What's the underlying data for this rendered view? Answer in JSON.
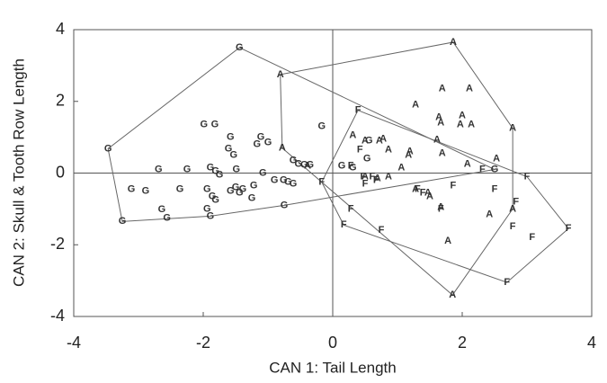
{
  "chart_data": {
    "type": "scatter",
    "x_label": "CAN 1:  Tail Length",
    "y_label": "CAN 2:  Skull & Tooth Row Length",
    "xlim": [
      -4,
      4
    ],
    "ylim": [
      -4,
      4
    ],
    "xticks": [
      -4,
      -2,
      0,
      2,
      4
    ],
    "yticks": [
      -4,
      -2,
      0,
      2,
      4
    ],
    "zero_lines": true,
    "hulls": true,
    "series": [
      {
        "name": "G",
        "color": "#333333",
        "x": [
          -1.44,
          -3.47,
          -1.99,
          -1.82,
          -1.11,
          -1.0,
          -1.17,
          -1.58,
          -1.61,
          -1.53,
          -0.17,
          -0.61,
          -0.53,
          -0.44,
          -0.35,
          -2.69,
          -2.25,
          -1.89,
          -1.81,
          -1.49,
          -1.08,
          -3.11,
          -2.89,
          -2.36,
          -1.94,
          -1.86,
          -1.81,
          -1.94,
          -1.89,
          -2.64,
          -2.56,
          -3.25,
          -1.58,
          -1.5,
          -1.44,
          -1.39,
          -1.25,
          -1.22,
          -0.9,
          -0.76,
          -0.69,
          -0.61,
          -0.75,
          -1.75,
          0.14,
          0.31,
          0.53,
          0.56,
          2.5
        ],
        "y": [
          3.5,
          0.68,
          1.35,
          1.35,
          1.0,
          0.85,
          0.8,
          1.0,
          0.68,
          0.5,
          1.3,
          0.35,
          0.25,
          0.22,
          0.22,
          0.1,
          0.1,
          0.15,
          0.05,
          0.1,
          0.0,
          -0.45,
          -0.5,
          -0.45,
          -0.45,
          -0.65,
          -0.75,
          -1.0,
          -1.2,
          -1.02,
          -1.25,
          -1.35,
          -0.5,
          -0.4,
          -0.55,
          -0.45,
          -0.7,
          -0.35,
          -0.2,
          -0.2,
          -0.25,
          -0.3,
          -0.9,
          -0.05,
          0.2,
          0.15,
          0.4,
          0.9,
          0.1
        ]
      },
      {
        "name": "A",
        "color": "#333333",
        "x": [
          1.86,
          -0.81,
          1.69,
          2.11,
          1.28,
          1.64,
          1.67,
          2.0,
          1.97,
          2.14,
          2.78,
          0.31,
          0.5,
          0.78,
          0.72,
          0.86,
          1.19,
          1.17,
          1.61,
          1.69,
          -0.78,
          -0.39,
          0.69,
          0.86,
          1.06,
          2.08,
          2.53,
          1.28,
          1.47,
          1.5,
          1.67,
          2.42,
          2.78,
          1.78,
          1.85,
          0.5
        ],
        "y": [
          3.65,
          2.75,
          2.35,
          2.35,
          1.9,
          1.55,
          1.4,
          1.6,
          1.35,
          1.35,
          1.25,
          1.05,
          0.9,
          0.95,
          0.9,
          0.65,
          0.6,
          0.5,
          0.92,
          0.55,
          0.7,
          0.2,
          -0.15,
          -0.1,
          0.15,
          0.25,
          0.4,
          -0.45,
          -0.55,
          -0.65,
          -0.95,
          -1.15,
          -1.0,
          -1.9,
          -3.4,
          -0.1
        ]
      },
      {
        "name": "F",
        "color": "#333333",
        "x": [
          0.39,
          0.42,
          -0.17,
          0.28,
          0.47,
          0.67,
          0.5,
          1.31,
          1.39,
          1.86,
          2.5,
          2.83,
          2.31,
          3.0,
          0.28,
          0.17,
          0.75,
          1.67,
          2.78,
          3.08,
          3.64,
          2.69,
          0.61
        ],
        "y": [
          1.75,
          0.65,
          -0.25,
          0.2,
          -0.1,
          -0.2,
          -0.3,
          -0.45,
          -0.55,
          -0.35,
          -0.45,
          -0.8,
          0.1,
          -0.1,
          -1.0,
          -1.45,
          -1.6,
          -1.0,
          -1.5,
          -1.8,
          -1.55,
          -3.05,
          -0.1
        ]
      }
    ]
  }
}
